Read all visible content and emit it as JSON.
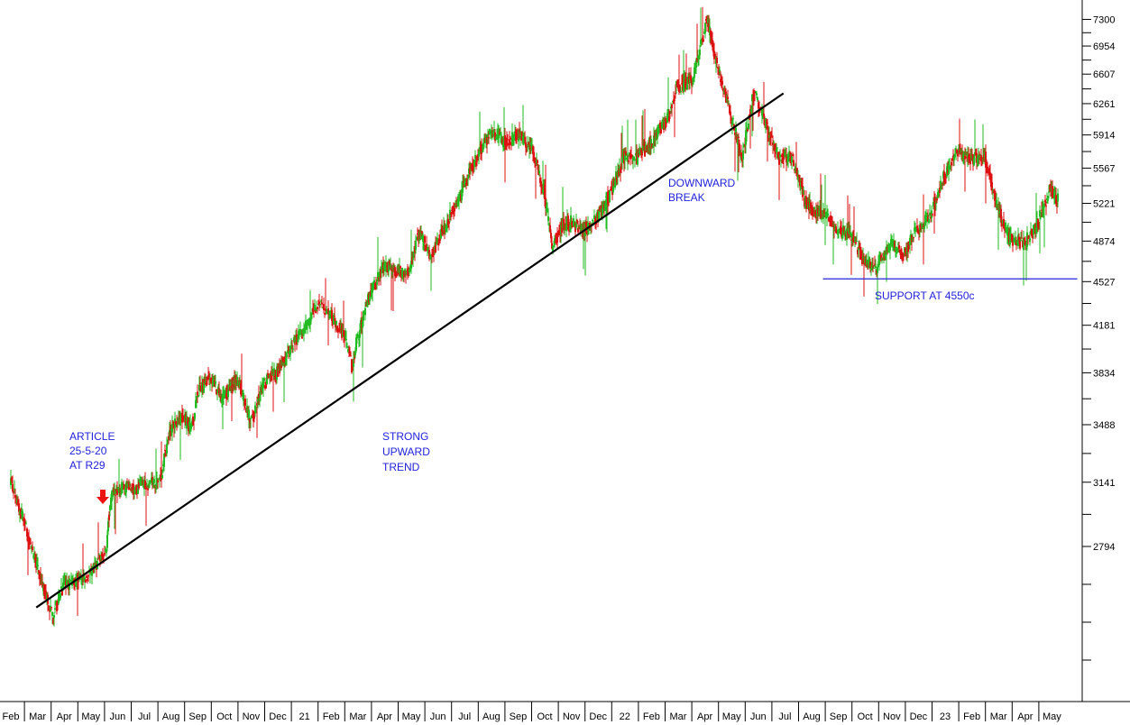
{
  "chart_data": {
    "type": "candlestick",
    "colors": {
      "up": "#22bb22",
      "down": "#dd1111",
      "annotation": "#2222dd",
      "trendline": "#000000",
      "support": "#2222dd",
      "arrow": "#ee1111"
    },
    "y_axis": {
      "position": "right",
      "range": [
        2420,
        7460
      ],
      "ticks": [
        "7300",
        "6954",
        "6607",
        "6261",
        "5914",
        "5567",
        "5221",
        "4874",
        "4527",
        "4181",
        "3834",
        "3488",
        "3141",
        "2794"
      ]
    },
    "x_axis": {
      "months": [
        "Feb",
        "Mar",
        "Apr",
        "May",
        "Jun",
        "Jul",
        "Aug",
        "Sep",
        "Oct",
        "Nov",
        "Dec",
        "21",
        "Feb",
        "Mar",
        "Apr",
        "May",
        "Jun",
        "Jul",
        "Aug",
        "Sep",
        "Oct",
        "Nov",
        "Dec",
        "22",
        "Feb",
        "Mar",
        "Apr",
        "May",
        "Jun",
        "Jul",
        "Aug",
        "Sep",
        "Oct",
        "Nov",
        "Dec",
        "23",
        "Feb",
        "Mar",
        "Apr",
        "May"
      ]
    },
    "price_path": [
      [
        "2020-02-01",
        3150
      ],
      [
        "2020-03-01",
        2700
      ],
      [
        "2020-03-20",
        2450
      ],
      [
        "2020-04-01",
        2600
      ],
      [
        "2020-05-01",
        2650
      ],
      [
        "2020-05-20",
        2780
      ],
      [
        "2020-05-25",
        3050
      ],
      [
        "2020-06-01",
        3100
      ],
      [
        "2020-07-01",
        3120
      ],
      [
        "2020-07-20",
        3150
      ],
      [
        "2020-08-01",
        3450
      ],
      [
        "2020-08-15",
        3550
      ],
      [
        "2020-08-25",
        3450
      ],
      [
        "2020-09-01",
        3700
      ],
      [
        "2020-09-15",
        3800
      ],
      [
        "2020-10-01",
        3650
      ],
      [
        "2020-10-15",
        3800
      ],
      [
        "2020-11-01",
        3500
      ],
      [
        "2020-11-15",
        3750
      ],
      [
        "2020-12-01",
        3850
      ],
      [
        "2020-12-15",
        4000
      ],
      [
        "2021-01-01",
        4150
      ],
      [
        "2021-01-15",
        4350
      ],
      [
        "2021-02-01",
        4250
      ],
      [
        "2021-02-15",
        4100
      ],
      [
        "2021-02-25",
        3850
      ],
      [
        "2021-03-01",
        4050
      ],
      [
        "2021-03-15",
        4400
      ],
      [
        "2021-04-01",
        4650
      ],
      [
        "2021-05-01",
        4600
      ],
      [
        "2021-05-10",
        4950
      ],
      [
        "2021-05-25",
        4750
      ],
      [
        "2021-06-10",
        5000
      ],
      [
        "2021-06-25",
        5250
      ],
      [
        "2021-07-15",
        5650
      ],
      [
        "2021-08-01",
        5950
      ],
      [
        "2021-08-15",
        5850
      ],
      [
        "2021-09-01",
        5900
      ],
      [
        "2021-09-15",
        5800
      ],
      [
        "2021-10-01",
        5350
      ],
      [
        "2021-10-10",
        4780
      ],
      [
        "2021-10-20",
        5000
      ],
      [
        "2021-11-01",
        5050
      ],
      [
        "2021-11-15",
        4950
      ],
      [
        "2021-12-01",
        5100
      ],
      [
        "2021-12-15",
        5300
      ],
      [
        "2022-01-01",
        5700
      ],
      [
        "2022-01-15",
        5650
      ],
      [
        "2022-02-01",
        5850
      ],
      [
        "2022-02-20",
        6100
      ],
      [
        "2022-03-01",
        6450
      ],
      [
        "2022-03-20",
        6550
      ],
      [
        "2022-04-05",
        7300
      ],
      [
        "2022-04-15",
        6750
      ],
      [
        "2022-05-01",
        6150
      ],
      [
        "2022-05-15",
        5700
      ],
      [
        "2022-05-28",
        6400
      ],
      [
        "2022-06-10",
        6050
      ],
      [
        "2022-06-25",
        5650
      ],
      [
        "2022-07-10",
        5700
      ],
      [
        "2022-07-25",
        5250
      ],
      [
        "2022-08-05",
        5150
      ],
      [
        "2022-08-20",
        5100
      ],
      [
        "2022-09-01",
        4980
      ],
      [
        "2022-09-15",
        4930
      ],
      [
        "2022-10-01",
        4700
      ],
      [
        "2022-10-15",
        4650
      ],
      [
        "2022-11-01",
        4850
      ],
      [
        "2022-11-15",
        4750
      ],
      [
        "2022-12-01",
        5000
      ],
      [
        "2022-12-15",
        5100
      ],
      [
        "2023-01-01",
        5500
      ],
      [
        "2023-01-15",
        5750
      ],
      [
        "2023-02-01",
        5650
      ],
      [
        "2023-02-15",
        5700
      ],
      [
        "2023-03-01",
        5200
      ],
      [
        "2023-03-15",
        4900
      ],
      [
        "2023-04-01",
        4850
      ],
      [
        "2023-04-15",
        5000
      ],
      [
        "2023-05-01",
        5350
      ],
      [
        "2023-05-10",
        5250
      ]
    ],
    "trendline": {
      "from": [
        "2020-03-01",
        2500
      ],
      "to": [
        "2022-07-01",
        6380
      ]
    },
    "support": {
      "level": 4550,
      "from": "2022-08-15",
      "to": "2023-06-01"
    },
    "annotations": {
      "article": [
        "ARTICLE",
        "25-5-20",
        "AT R29"
      ],
      "strong_trend": [
        "STRONG",
        "UPWARD",
        "TREND"
      ],
      "downward_break": [
        "DOWNWARD",
        "BREAK"
      ],
      "support": "SUPPORT AT 4550c"
    },
    "arrow_date": "2020-05-20"
  }
}
